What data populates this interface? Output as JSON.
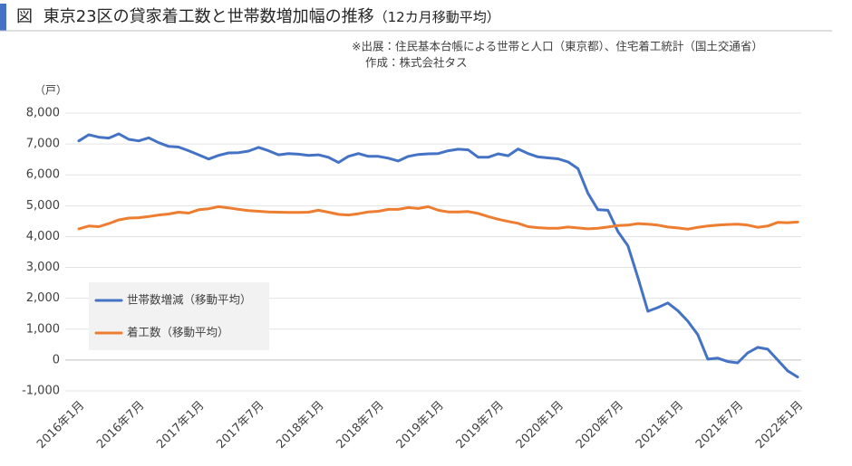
{
  "chart_data": {
    "type": "line",
    "figure_label": "図",
    "title": "東京23区の貸家着工数と世帯数増加幅の推移",
    "title_note": "（12カ月移動平均）",
    "source": "※出展：住民基本台帳による世帯と人口（東京都）、住宅着工統計（国土交通省）",
    "credit": "作成：株式会社タス",
    "y_unit": "（戸）",
    "categories": [
      "2016年1月",
      null,
      null,
      null,
      null,
      null,
      "2016年7月",
      null,
      null,
      null,
      null,
      null,
      "2017年1月",
      null,
      null,
      null,
      null,
      null,
      "2017年7月",
      null,
      null,
      null,
      null,
      null,
      "2018年1月",
      null,
      null,
      null,
      null,
      null,
      "2018年7月",
      null,
      null,
      null,
      null,
      null,
      "2019年1月",
      null,
      null,
      null,
      null,
      null,
      "2019年7月",
      null,
      null,
      null,
      null,
      null,
      "2020年1月",
      null,
      null,
      null,
      null,
      null,
      "2020年7月",
      null,
      null,
      null,
      null,
      null,
      "2021年1月",
      null,
      null,
      null,
      null,
      null,
      "2021年7月",
      null,
      null,
      null,
      null,
      null,
      "2022年1月"
    ],
    "series": [
      {
        "name": "世帯数増減（移動平均）",
        "color": "#4472c4",
        "values": [
          7100,
          7300,
          7220,
          7190,
          7330,
          7150,
          7100,
          7200,
          7040,
          6920,
          6900,
          6780,
          6650,
          6510,
          6630,
          6710,
          6720,
          6770,
          6890,
          6780,
          6650,
          6690,
          6670,
          6630,
          6650,
          6570,
          6400,
          6600,
          6690,
          6600,
          6600,
          6540,
          6450,
          6600,
          6660,
          6680,
          6690,
          6780,
          6830,
          6810,
          6570,
          6570,
          6680,
          6620,
          6840,
          6690,
          6580,
          6550,
          6520,
          6420,
          6200,
          5400,
          4870,
          4850,
          4160,
          3700,
          2670,
          1580,
          1700,
          1850,
          1600,
          1260,
          820,
          30,
          60,
          -50,
          -90,
          230,
          410,
          350,
          0,
          -350,
          -550
        ]
      },
      {
        "name": "着工数（移動平均）",
        "color": "#ed7d31",
        "values": [
          4250,
          4340,
          4320,
          4420,
          4540,
          4600,
          4610,
          4650,
          4700,
          4730,
          4790,
          4760,
          4870,
          4900,
          4970,
          4930,
          4880,
          4840,
          4820,
          4800,
          4790,
          4780,
          4780,
          4790,
          4850,
          4790,
          4720,
          4700,
          4740,
          4800,
          4820,
          4880,
          4880,
          4940,
          4910,
          4970,
          4850,
          4800,
          4800,
          4810,
          4750,
          4650,
          4560,
          4490,
          4430,
          4320,
          4290,
          4270,
          4270,
          4310,
          4280,
          4250,
          4270,
          4310,
          4360,
          4370,
          4420,
          4400,
          4370,
          4310,
          4280,
          4240,
          4300,
          4340,
          4370,
          4390,
          4400,
          4370,
          4300,
          4340,
          4460,
          4450,
          4470
        ]
      }
    ],
    "ylim": [
      -1000,
      8000
    ],
    "yticks": [
      {
        "value": -1000,
        "label": "-1,000"
      },
      0,
      {
        "value": 1000,
        "label": "1,000"
      },
      {
        "value": 2000,
        "label": "2,000"
      },
      {
        "value": 3000,
        "label": "3,000"
      },
      {
        "value": 4000,
        "label": "4,000"
      },
      {
        "value": 5000,
        "label": "5,000"
      },
      {
        "value": 6000,
        "label": "6,000"
      },
      {
        "value": 7000,
        "label": "7,000"
      },
      {
        "value": 8000,
        "label": "8,000"
      }
    ],
    "grid": true,
    "legend_position": "lower-left"
  }
}
